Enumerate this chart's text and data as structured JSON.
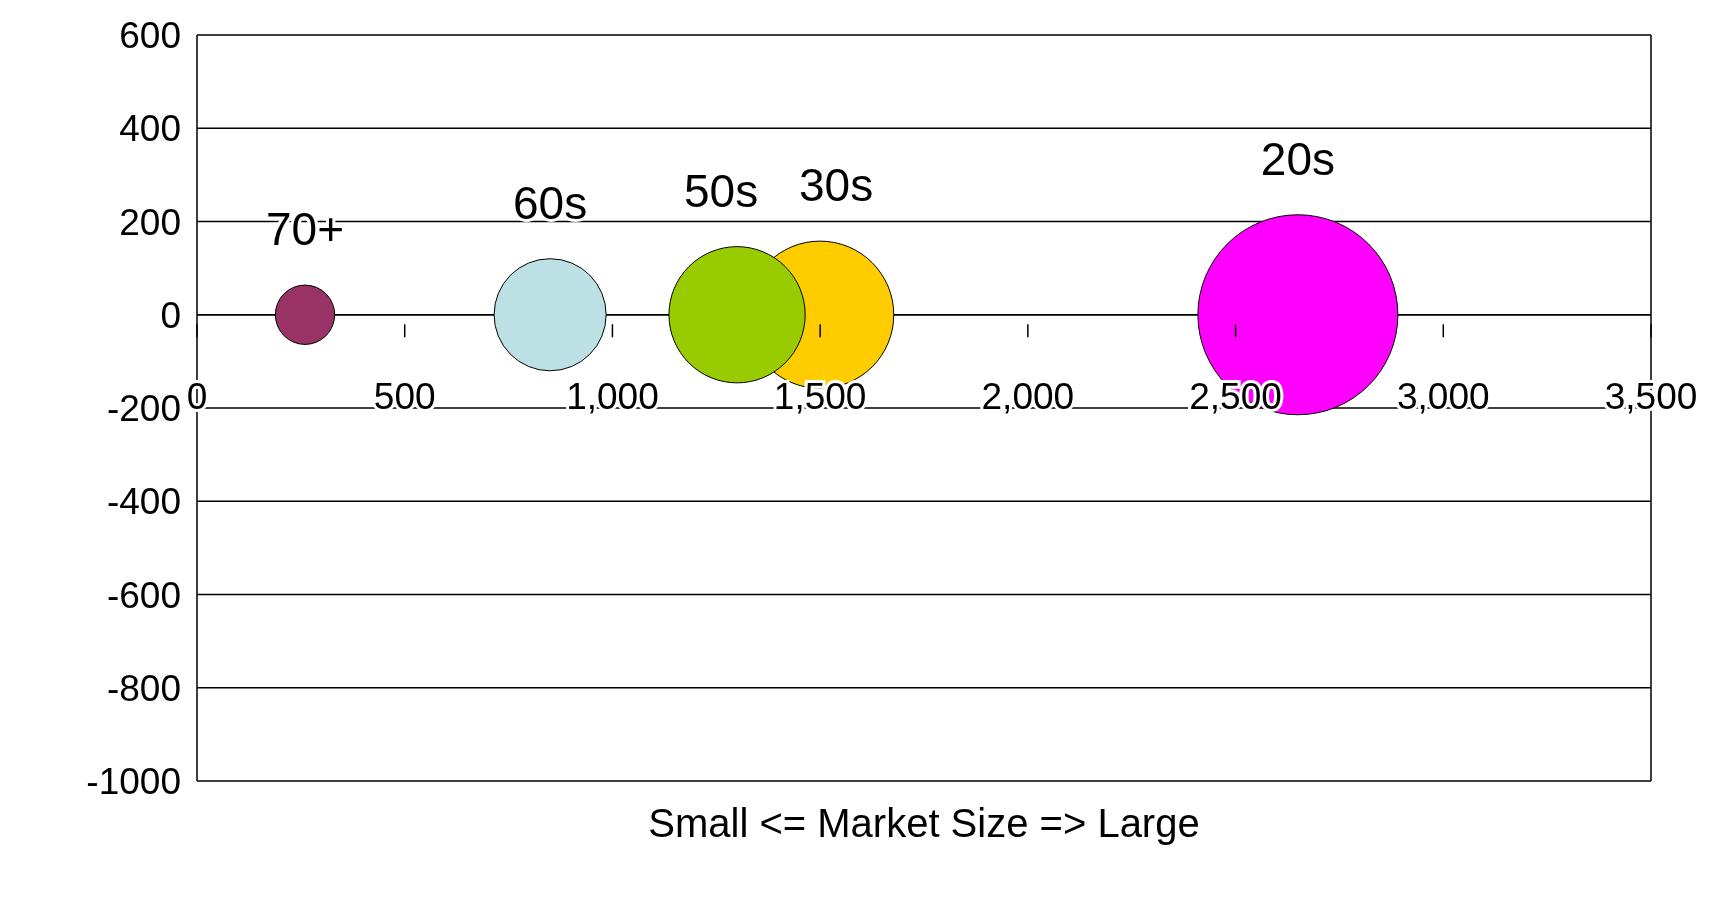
{
  "chart_data": {
    "type": "bubble",
    "xlabel": "Small <= Market Size => Large",
    "xlim": [
      0,
      3500
    ],
    "xticks": [
      0,
      500,
      {
        "value": 1000,
        "label": "1,000"
      },
      {
        "value": 1500,
        "label": "1,500"
      },
      {
        "value": 2000,
        "label": "2,000"
      },
      {
        "value": 2500,
        "label": "2,500"
      },
      {
        "value": 3000,
        "label": "3,000"
      },
      {
        "value": 3500,
        "label": "3,500"
      }
    ],
    "ylim": [
      -1000,
      600
    ],
    "yticks": [
      -1000,
      -800,
      -600,
      -400,
      -200,
      0,
      200,
      400,
      600
    ],
    "grid": "y",
    "legend": false,
    "series": [
      {
        "name": "70+",
        "color": "#993366",
        "x": [
          260
        ],
        "values": [
          0
        ],
        "sizes": [
          0.088
        ]
      },
      {
        "name": "60s",
        "color": "#bde0e4",
        "x": [
          850
        ],
        "values": [
          0
        ],
        "sizes": [
          0.314
        ]
      },
      {
        "name": "30s",
        "color": "#ffcc00",
        "x": [
          1500
        ],
        "values": [
          0
        ],
        "sizes": [
          0.542
        ]
      },
      {
        "name": "50s",
        "color": "#99cc00",
        "x": [
          1300
        ],
        "values": [
          0
        ],
        "sizes": [
          0.464
        ]
      },
      {
        "name": "20s",
        "color": "#ff00ff",
        "x": [
          2650
        ],
        "values": [
          0
        ],
        "sizes": [
          1
        ]
      }
    ]
  }
}
